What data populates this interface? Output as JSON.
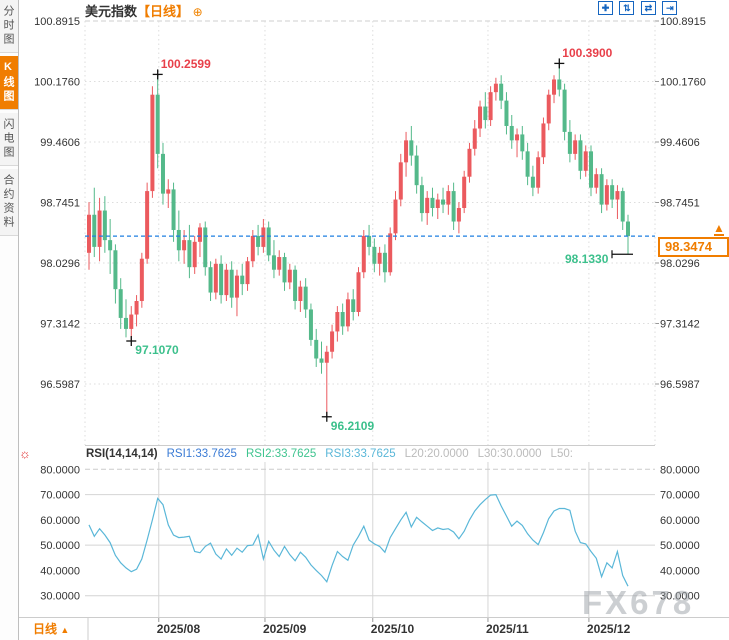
{
  "window": {
    "title_symbol": "美元指数",
    "title_period": "【日线】",
    "add_icon": "⊕"
  },
  "toolbar": {
    "icons": [
      {
        "name": "crosshair-icon",
        "glyph": "✚"
      },
      {
        "name": "zoom-y-axis-icon",
        "glyph": "⇅"
      },
      {
        "name": "zoom-x-axis-icon",
        "glyph": "⇄"
      },
      {
        "name": "pan-right-icon",
        "glyph": "⇥"
      }
    ]
  },
  "sidebar": {
    "items": [
      {
        "label": "分时图",
        "active": false
      },
      {
        "label": "K线图",
        "active": true
      },
      {
        "label": "闪电图",
        "active": false
      },
      {
        "label": "合约资料",
        "active": false
      }
    ]
  },
  "indicator_settings_icon": "☼",
  "bottom_bar": {
    "period_label": "日线",
    "arrow": "▲"
  },
  "price_box": {
    "value": "98.3474",
    "jump_arrow": "▲"
  },
  "watermark": "FX678",
  "colors": {
    "up": "#eb5a5e",
    "down": "#54b98a",
    "accent_orange": "#f07d00",
    "price_line_blue": "#1e7fe0",
    "annotation_red": "#e8404a",
    "annotation_green": "#3cc08c",
    "rsi_line": "#5ab7d8",
    "axis_text": "#333333",
    "grid": "#dddddd",
    "toolbar_blue": "#1565c0"
  },
  "chart_data": [
    {
      "type": "candlestick",
      "title": "美元指数 日线",
      "y_ticks": [
        "100.8915",
        "100.1760",
        "99.4606",
        "98.7451",
        "98.0296",
        "97.3142",
        "96.5987"
      ],
      "x_ticks": [
        {
          "label": "2025/08",
          "index": 13.2
        },
        {
          "label": "2025/09",
          "index": 33.3
        },
        {
          "label": "2025/10",
          "index": 53.7
        },
        {
          "label": "2025/11",
          "index": 75.5
        },
        {
          "label": "2025/12",
          "index": 94.6
        }
      ],
      "current_price": 98.3474,
      "annotations": [
        {
          "text": "100.2599",
          "type": "high",
          "index": 13,
          "value": 100.2599
        },
        {
          "text": "97.1070",
          "type": "low",
          "index": 8,
          "value": 97.107
        },
        {
          "text": "96.2109",
          "type": "low",
          "index": 45,
          "value": 96.2109
        },
        {
          "text": "100.3900",
          "type": "high",
          "index": 89,
          "value": 100.39
        },
        {
          "text": "98.1330",
          "type": "low",
          "index": 102,
          "value": 98.133,
          "last": true
        }
      ],
      "candles": [
        [
          98.15,
          98.75,
          97.95,
          98.6
        ],
        [
          98.6,
          98.92,
          98.1,
          98.22
        ],
        [
          98.22,
          98.8,
          98.05,
          98.65
        ],
        [
          98.65,
          98.82,
          98.15,
          98.3
        ],
        [
          98.3,
          98.55,
          97.9,
          98.18
        ],
        [
          98.18,
          98.25,
          97.55,
          97.72
        ],
        [
          97.72,
          97.85,
          97.25,
          97.38
        ],
        [
          97.38,
          97.6,
          97.15,
          97.25
        ],
        [
          97.25,
          97.52,
          97.107,
          97.42
        ],
        [
          97.42,
          97.65,
          97.28,
          97.58
        ],
        [
          97.58,
          98.15,
          97.5,
          98.08
        ],
        [
          98.08,
          98.98,
          98.02,
          98.88
        ],
        [
          98.88,
          100.12,
          98.8,
          100.02
        ],
        [
          100.02,
          100.2599,
          99.15,
          99.32
        ],
        [
          99.32,
          99.45,
          98.72,
          98.85
        ],
        [
          98.85,
          99.02,
          98.68,
          98.9
        ],
        [
          98.9,
          98.98,
          98.28,
          98.42
        ],
        [
          98.42,
          98.65,
          98.05,
          98.18
        ],
        [
          98.18,
          98.42,
          98.02,
          98.3
        ],
        [
          98.3,
          98.48,
          97.85,
          97.98
        ],
        [
          97.98,
          98.35,
          97.9,
          98.28
        ],
        [
          98.28,
          98.5,
          98.1,
          98.45
        ],
        [
          98.45,
          98.52,
          97.88,
          97.98
        ],
        [
          97.98,
          98.05,
          97.58,
          97.68
        ],
        [
          97.68,
          98.08,
          97.6,
          98.02
        ],
        [
          98.02,
          98.12,
          97.55,
          97.65
        ],
        [
          97.65,
          98.02,
          97.58,
          97.95
        ],
        [
          97.95,
          98.05,
          97.5,
          97.62
        ],
        [
          97.62,
          97.95,
          97.4,
          97.88
        ],
        [
          97.88,
          98.02,
          97.65,
          97.78
        ],
        [
          97.78,
          98.1,
          97.7,
          98.05
        ],
        [
          98.05,
          98.42,
          97.98,
          98.35
        ],
        [
          98.35,
          98.48,
          98.12,
          98.22
        ],
        [
          98.22,
          98.55,
          98.15,
          98.45
        ],
        [
          98.45,
          98.52,
          98.05,
          98.12
        ],
        [
          98.12,
          98.3,
          97.85,
          97.95
        ],
        [
          97.95,
          98.18,
          97.88,
          98.1
        ],
        [
          98.1,
          98.15,
          97.7,
          97.8
        ],
        [
          97.8,
          98.02,
          97.72,
          97.95
        ],
        [
          97.95,
          98.0,
          97.48,
          97.58
        ],
        [
          97.58,
          97.82,
          97.45,
          97.75
        ],
        [
          97.75,
          97.85,
          97.38,
          97.48
        ],
        [
          97.48,
          97.55,
          97.05,
          97.12
        ],
        [
          97.12,
          97.25,
          96.8,
          96.9
        ],
        [
          96.9,
          97.1,
          96.72,
          96.85
        ],
        [
          96.85,
          97.05,
          96.2109,
          96.98
        ],
        [
          96.98,
          97.3,
          96.9,
          97.22
        ],
        [
          97.22,
          97.52,
          97.1,
          97.45
        ],
        [
          97.45,
          97.55,
          97.18,
          97.28
        ],
        [
          97.28,
          97.68,
          97.22,
          97.6
        ],
        [
          97.6,
          97.72,
          97.35,
          97.45
        ],
        [
          97.45,
          97.98,
          97.4,
          97.92
        ],
        [
          97.92,
          98.42,
          97.85,
          98.35
        ],
        [
          98.35,
          98.48,
          98.12,
          98.22
        ],
        [
          98.22,
          98.32,
          97.92,
          98.02
        ],
        [
          98.02,
          98.22,
          97.88,
          98.15
        ],
        [
          98.15,
          98.25,
          97.8,
          97.92
        ],
        [
          97.92,
          98.45,
          97.88,
          98.38
        ],
        [
          98.38,
          98.88,
          98.3,
          98.78
        ],
        [
          98.78,
          99.32,
          98.7,
          99.22
        ],
        [
          99.22,
          99.58,
          99.05,
          99.48
        ],
        [
          99.48,
          99.65,
          99.18,
          99.3
        ],
        [
          99.3,
          99.42,
          98.85,
          98.95
        ],
        [
          98.95,
          99.05,
          98.52,
          98.62
        ],
        [
          98.62,
          98.88,
          98.48,
          98.8
        ],
        [
          98.8,
          98.92,
          98.58,
          98.68
        ],
        [
          98.68,
          98.85,
          98.55,
          98.78
        ],
        [
          98.78,
          98.92,
          98.62,
          98.72
        ],
        [
          98.72,
          98.95,
          98.6,
          98.88
        ],
        [
          98.88,
          98.98,
          98.42,
          98.52
        ],
        [
          98.52,
          98.75,
          98.38,
          98.68
        ],
        [
          98.68,
          99.12,
          98.62,
          99.05
        ],
        [
          99.05,
          99.45,
          98.98,
          99.38
        ],
        [
          99.38,
          99.72,
          99.3,
          99.62
        ],
        [
          99.62,
          99.95,
          99.52,
          99.88
        ],
        [
          99.88,
          100.05,
          99.62,
          99.72
        ],
        [
          99.72,
          100.12,
          99.65,
          100.05
        ],
        [
          100.05,
          100.22,
          99.95,
          100.15
        ],
        [
          100.15,
          100.25,
          99.85,
          99.95
        ],
        [
          99.95,
          100.05,
          99.55,
          99.65
        ],
        [
          99.65,
          99.78,
          99.38,
          99.48
        ],
        [
          99.48,
          99.62,
          99.28,
          99.55
        ],
        [
          99.55,
          99.65,
          99.25,
          99.35
        ],
        [
          99.35,
          99.45,
          98.95,
          99.05
        ],
        [
          99.05,
          99.18,
          98.82,
          98.92
        ],
        [
          98.92,
          99.35,
          98.85,
          99.28
        ],
        [
          99.28,
          99.75,
          99.2,
          99.68
        ],
        [
          99.68,
          100.08,
          99.6,
          100.02
        ],
        [
          100.02,
          100.25,
          99.92,
          100.2
        ],
        [
          100.2,
          100.39,
          100.0,
          100.08
        ],
        [
          100.08,
          100.15,
          99.48,
          99.58
        ],
        [
          99.58,
          99.72,
          99.22,
          99.32
        ],
        [
          99.32,
          99.55,
          99.25,
          99.48
        ],
        [
          99.48,
          99.55,
          99.02,
          99.12
        ],
        [
          99.12,
          99.42,
          99.05,
          99.35
        ],
        [
          99.35,
          99.42,
          98.82,
          98.92
        ],
        [
          98.92,
          99.15,
          98.85,
          99.08
        ],
        [
          99.08,
          99.15,
          98.62,
          98.72
        ],
        [
          98.72,
          99.02,
          98.65,
          98.95
        ],
        [
          98.95,
          99.02,
          98.68,
          98.78
        ],
        [
          98.78,
          98.95,
          98.55,
          98.88
        ],
        [
          98.88,
          98.92,
          98.42,
          98.52
        ],
        [
          98.52,
          98.6,
          98.133,
          98.3474
        ]
      ]
    },
    {
      "type": "line",
      "name": "RSI(14,14,14)",
      "legend": [
        {
          "text": "RSI(14,14,14)",
          "color": "#333333"
        },
        {
          "text": "RSI1:33.7625",
          "color": "#3a7bd5"
        },
        {
          "text": "RSI2:33.7625",
          "color": "#3fc48f"
        },
        {
          "text": "RSI3:33.7625",
          "color": "#5ab7d8"
        },
        {
          "text": "L20:20.0000",
          "color": "#bbbbbb"
        },
        {
          "text": "L30:30.0000",
          "color": "#bbbbbb"
        },
        {
          "text": "L50:",
          "color": "#bbbbbb"
        }
      ],
      "y_ticks": [
        "80.0000",
        "70.0000",
        "60.0000",
        "50.0000",
        "40.0000",
        "30.0000"
      ],
      "ref_lines": [
        80,
        70,
        50,
        30
      ],
      "values": [
        58,
        53.5,
        56.5,
        54,
        51,
        46,
        43,
        41,
        39.5,
        40.5,
        44.5,
        52,
        60,
        68.5,
        66,
        58,
        54,
        53,
        53.2,
        53.5,
        47.5,
        47,
        49.5,
        50.8,
        46.5,
        44.5,
        48.5,
        46,
        48.8,
        47.2,
        49.8,
        50,
        54,
        44.5,
        51.5,
        48,
        45.5,
        49.5,
        46.2,
        43.8,
        47.2,
        45.2,
        42.2,
        40,
        38,
        35.5,
        42,
        47.5,
        45.5,
        44,
        50,
        53.5,
        57.5,
        52,
        50.5,
        49.5,
        47.2,
        53,
        56.5,
        60,
        63,
        57.2,
        61,
        59.2,
        57.5,
        55.8,
        56.8,
        56.2,
        56.5,
        55.2,
        52.5,
        55.5,
        60,
        63.5,
        66,
        68,
        69.8,
        70,
        65.5,
        61.5,
        57.5,
        59.5,
        57.8,
        54.5,
        52,
        50.2,
        55,
        60.5,
        63.5,
        64.5,
        64.5,
        63.8,
        55.5,
        51,
        50.5,
        47.5,
        44.8,
        37.5,
        43,
        41,
        47.5,
        38,
        33.76
      ]
    }
  ]
}
